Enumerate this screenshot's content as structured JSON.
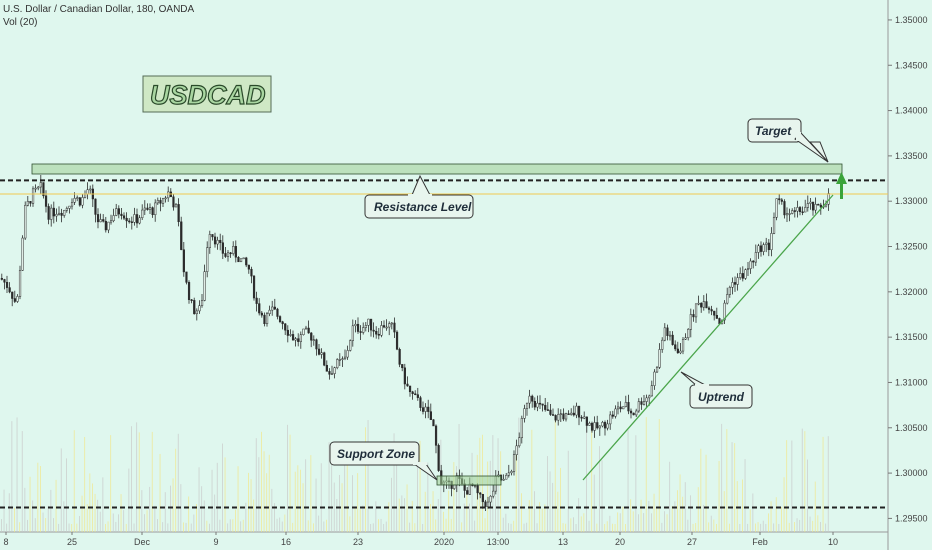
{
  "header": {
    "symbol_line": "U.S. Dollar / Canadian Dollar, 180, OANDA",
    "volume_line": "Vol (20)"
  },
  "logo": {
    "text": "USDCAD"
  },
  "colors": {
    "background": "#dff7ee",
    "candle_body": "#2a2a2a",
    "volume_bar": "#f2e58a",
    "trendline": "#4aa54a",
    "level_line": "#222222",
    "zone_fill": "#9fcf95",
    "target_arrow": "#3aa33a",
    "price_line": "#f0c850"
  },
  "annotations": {
    "resistance": "Resistance Level",
    "support": "Support Zone",
    "uptrend": "Uptrend",
    "target": "Target"
  },
  "chart_data": {
    "type": "candlestick",
    "title": "",
    "ylim": [
      1.2935,
      1.3522
    ],
    "y_ticks": [
      "1.35000",
      "1.34500",
      "1.34000",
      "1.33500",
      "1.33000",
      "1.32500",
      "1.32000",
      "1.31500",
      "1.31000",
      "1.30500",
      "1.30000",
      "1.29500"
    ],
    "x_ticks": [
      "8",
      "25",
      "Dec",
      "9",
      "16",
      "23",
      "2020",
      "13:00",
      "13",
      "20",
      "27",
      "Feb",
      "10"
    ],
    "resistance_level": 1.3323,
    "support_level": 1.2962,
    "current_price": 1.3308,
    "trendline": {
      "from": [
        "20",
        1.2962
      ],
      "to": [
        "10",
        1.328
      ]
    },
    "price_path": [
      [
        0,
        1.3215
      ],
      [
        8,
        1.3205
      ],
      [
        16,
        1.3185
      ],
      [
        24,
        1.329
      ],
      [
        32,
        1.3308
      ],
      [
        40,
        1.3315
      ],
      [
        48,
        1.3285
      ],
      [
        56,
        1.329
      ],
      [
        64,
        1.329
      ],
      [
        72,
        1.3305
      ],
      [
        80,
        1.33
      ],
      [
        88,
        1.3315
      ],
      [
        96,
        1.328
      ],
      [
        104,
        1.327
      ],
      [
        112,
        1.3285
      ],
      [
        120,
        1.329
      ],
      [
        128,
        1.328
      ],
      [
        136,
        1.328
      ],
      [
        144,
        1.329
      ],
      [
        152,
        1.329
      ],
      [
        160,
        1.33
      ],
      [
        168,
        1.331
      ],
      [
        176,
        1.329
      ],
      [
        184,
        1.3215
      ],
      [
        192,
        1.318
      ],
      [
        200,
        1.318
      ],
      [
        208,
        1.327
      ],
      [
        216,
        1.3255
      ],
      [
        224,
        1.324
      ],
      [
        232,
        1.3245
      ],
      [
        240,
        1.3235
      ],
      [
        248,
        1.3225
      ],
      [
        256,
        1.3185
      ],
      [
        264,
        1.317
      ],
      [
        272,
        1.318
      ],
      [
        280,
        1.317
      ],
      [
        288,
        1.3155
      ],
      [
        296,
        1.3145
      ],
      [
        304,
        1.3155
      ],
      [
        312,
        1.315
      ],
      [
        320,
        1.313
      ],
      [
        328,
        1.311
      ],
      [
        336,
        1.312
      ],
      [
        344,
        1.3125
      ],
      [
        352,
        1.316
      ],
      [
        360,
        1.316
      ],
      [
        368,
        1.3165
      ],
      [
        376,
        1.3155
      ],
      [
        384,
        1.3165
      ],
      [
        392,
        1.316
      ],
      [
        400,
        1.3115
      ],
      [
        408,
        1.309
      ],
      [
        416,
        1.308
      ],
      [
        424,
        1.307
      ],
      [
        432,
        1.3055
      ],
      [
        440,
        1.299
      ],
      [
        448,
        1.2985
      ],
      [
        456,
        1.2995
      ],
      [
        464,
        1.298
      ],
      [
        472,
        1.2985
      ],
      [
        480,
        1.297
      ],
      [
        488,
        1.2965
      ],
      [
        496,
        1.2995
      ],
      [
        504,
        1.299
      ],
      [
        512,
        1.301
      ],
      [
        520,
        1.305
      ],
      [
        528,
        1.309
      ],
      [
        536,
        1.3075
      ],
      [
        544,
        1.307
      ],
      [
        552,
        1.306
      ],
      [
        560,
        1.3065
      ],
      [
        568,
        1.306
      ],
      [
        576,
        1.307
      ],
      [
        584,
        1.306
      ],
      [
        592,
        1.305
      ],
      [
        600,
        1.305
      ],
      [
        608,
        1.306
      ],
      [
        616,
        1.307
      ],
      [
        624,
        1.3075
      ],
      [
        632,
        1.3065
      ],
      [
        640,
        1.308
      ],
      [
        648,
        1.3085
      ],
      [
        656,
        1.312
      ],
      [
        664,
        1.316
      ],
      [
        672,
        1.314
      ],
      [
        680,
        1.3135
      ],
      [
        688,
        1.3165
      ],
      [
        696,
        1.3185
      ],
      [
        704,
        1.319
      ],
      [
        712,
        1.318
      ],
      [
        720,
        1.3165
      ],
      [
        728,
        1.3205
      ],
      [
        736,
        1.3215
      ],
      [
        744,
        1.322
      ],
      [
        752,
        1.3235
      ],
      [
        760,
        1.325
      ],
      [
        768,
        1.325
      ],
      [
        776,
        1.33
      ],
      [
        784,
        1.329
      ],
      [
        792,
        1.3285
      ],
      [
        800,
        1.329
      ],
      [
        808,
        1.3295
      ],
      [
        816,
        1.329
      ],
      [
        824,
        1.33
      ],
      [
        830,
        1.3308
      ]
    ]
  }
}
